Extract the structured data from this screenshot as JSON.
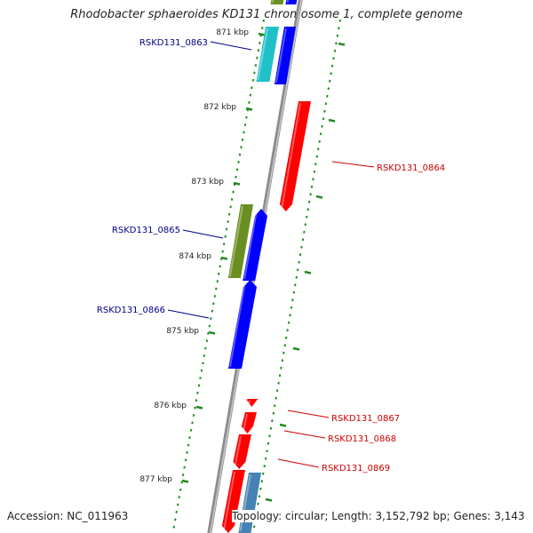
{
  "title": "Rhodobacter sphaeroides KD131 chromosome 1, complete genome",
  "footer": {
    "accession": "Accession: NC_011963",
    "topology": "Topology: circular; Length: 3,152,792 bp; Genes: 3,143"
  },
  "colors": {
    "backbone": "#8c8c8c",
    "forward_cds": "#0000ff",
    "reverse_cds": "#ff0000",
    "gene": "#6b8e23",
    "teal_feature": "#20c0c8",
    "steelblue_feature": "#4682b4",
    "ticks": "#228b22",
    "forward_label": "#00008b",
    "reverse_label": "#cc0000"
  },
  "scale": {
    "tick_labels": [
      "871 kbp",
      "872 kbp",
      "873 kbp",
      "874 kbp",
      "875 kbp",
      "876 kbp",
      "877 kbp"
    ]
  },
  "features": [
    {
      "label": "",
      "strand": "forward",
      "type": "gene"
    },
    {
      "label": "",
      "strand": "forward",
      "type": "CDS"
    },
    {
      "label": "RSKD131_0863",
      "strand": "forward",
      "type": "feature"
    },
    {
      "label": "",
      "strand": "forward",
      "type": "CDS"
    },
    {
      "label": "RSKD131_0864",
      "strand": "reverse",
      "type": "CDS"
    },
    {
      "label": "RSKD131_0865",
      "strand": "forward",
      "type": "gene"
    },
    {
      "label": "",
      "strand": "forward",
      "type": "CDS"
    },
    {
      "label": "RSKD131_0866",
      "strand": "forward",
      "type": "CDS"
    },
    {
      "label": "RSKD131_0867",
      "strand": "reverse",
      "type": "CDS"
    },
    {
      "label": "RSKD131_0868",
      "strand": "reverse",
      "type": "CDS"
    },
    {
      "label": "RSKD131_0869",
      "strand": "reverse",
      "type": "CDS"
    },
    {
      "label": "",
      "strand": "reverse",
      "type": "CDS"
    },
    {
      "label": "",
      "strand": "forward",
      "type": "feature"
    }
  ]
}
